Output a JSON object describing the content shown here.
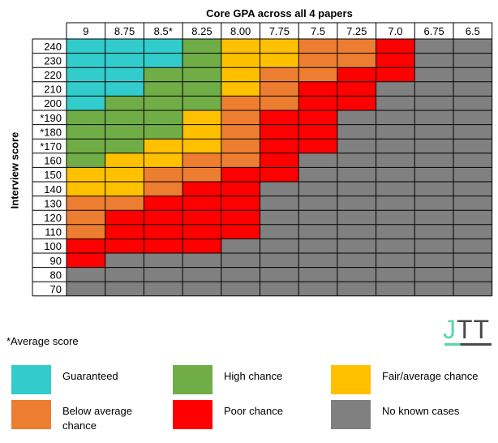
{
  "chart_data": {
    "type": "heatmap",
    "title": "Core GPA across all 4 papers",
    "xlabel": "Core GPA across all 4 papers",
    "ylabel": "Interview score",
    "x_categories": [
      "9",
      "8.75",
      "8.5*",
      "8.25",
      "8.00",
      "7.75",
      "7.5",
      "7.25",
      "7.0",
      "6.75",
      "6.5"
    ],
    "y_categories": [
      "240",
      "230",
      "220",
      "210",
      "200",
      "*190",
      "*180",
      "*170",
      "160",
      "150",
      "140",
      "130",
      "120",
      "110",
      "100",
      "90",
      "80",
      "70"
    ],
    "category_key": {
      "G": "Guaranteed",
      "H": "High chance",
      "F": "Fair/average chance",
      "B": "Below average chance",
      "P": "Poor chance",
      "N": "No known cases"
    },
    "cells": [
      [
        "G",
        "G",
        "G",
        "H",
        "F",
        "F",
        "B",
        "B",
        "P",
        "N",
        "N"
      ],
      [
        "G",
        "G",
        "G",
        "H",
        "F",
        "F",
        "B",
        "B",
        "P",
        "N",
        "N"
      ],
      [
        "G",
        "G",
        "H",
        "H",
        "F",
        "B",
        "B",
        "P",
        "P",
        "N",
        "N"
      ],
      [
        "G",
        "G",
        "H",
        "H",
        "F",
        "B",
        "P",
        "P",
        "N",
        "N",
        "N"
      ],
      [
        "G",
        "H",
        "H",
        "H",
        "B",
        "B",
        "P",
        "P",
        "N",
        "N",
        "N"
      ],
      [
        "H",
        "H",
        "H",
        "F",
        "B",
        "P",
        "P",
        "N",
        "N",
        "N",
        "N"
      ],
      [
        "H",
        "H",
        "H",
        "F",
        "B",
        "P",
        "P",
        "N",
        "N",
        "N",
        "N"
      ],
      [
        "H",
        "H",
        "F",
        "F",
        "B",
        "P",
        "P",
        "N",
        "N",
        "N",
        "N"
      ],
      [
        "H",
        "F",
        "F",
        "B",
        "B",
        "P",
        "N",
        "N",
        "N",
        "N",
        "N"
      ],
      [
        "F",
        "F",
        "B",
        "B",
        "P",
        "P",
        "N",
        "N",
        "N",
        "N",
        "N"
      ],
      [
        "F",
        "F",
        "B",
        "P",
        "P",
        "N",
        "N",
        "N",
        "N",
        "N",
        "N"
      ],
      [
        "B",
        "B",
        "P",
        "P",
        "P",
        "N",
        "N",
        "N",
        "N",
        "N",
        "N"
      ],
      [
        "B",
        "P",
        "P",
        "P",
        "P",
        "N",
        "N",
        "N",
        "N",
        "N",
        "N"
      ],
      [
        "B",
        "P",
        "P",
        "P",
        "P",
        "N",
        "N",
        "N",
        "N",
        "N",
        "N"
      ],
      [
        "P",
        "P",
        "P",
        "P",
        "N",
        "N",
        "N",
        "N",
        "N",
        "N",
        "N"
      ],
      [
        "P",
        "N",
        "N",
        "N",
        "N",
        "N",
        "N",
        "N",
        "N",
        "N",
        "N"
      ],
      [
        "N",
        "N",
        "N",
        "N",
        "N",
        "N",
        "N",
        "N",
        "N",
        "N",
        "N"
      ],
      [
        "N",
        "N",
        "N",
        "N",
        "N",
        "N",
        "N",
        "N",
        "N",
        "N",
        "N"
      ]
    ],
    "colors": {
      "G": "#33cccc",
      "H": "#70ad47",
      "F": "#ffc000",
      "B": "#ed7d31",
      "P": "#ff0000",
      "N": "#808080"
    },
    "footnote": "*Average score"
  },
  "legend": [
    {
      "key": "G",
      "label": "Guaranteed"
    },
    {
      "key": "H",
      "label": "High chance"
    },
    {
      "key": "F",
      "label": "Fair/average chance"
    },
    {
      "key": "B",
      "label": "Below average chance"
    },
    {
      "key": "P",
      "label": "Poor chance"
    },
    {
      "key": "N",
      "label": "No known cases"
    }
  ],
  "logo": {
    "letters": "JTT",
    "letter_1": "J",
    "letter_rest": "TT"
  },
  "colors": {
    "grid_line": "#000000",
    "logo_accent": "#59d6a8",
    "logo_dark": "#4a4a4a"
  }
}
